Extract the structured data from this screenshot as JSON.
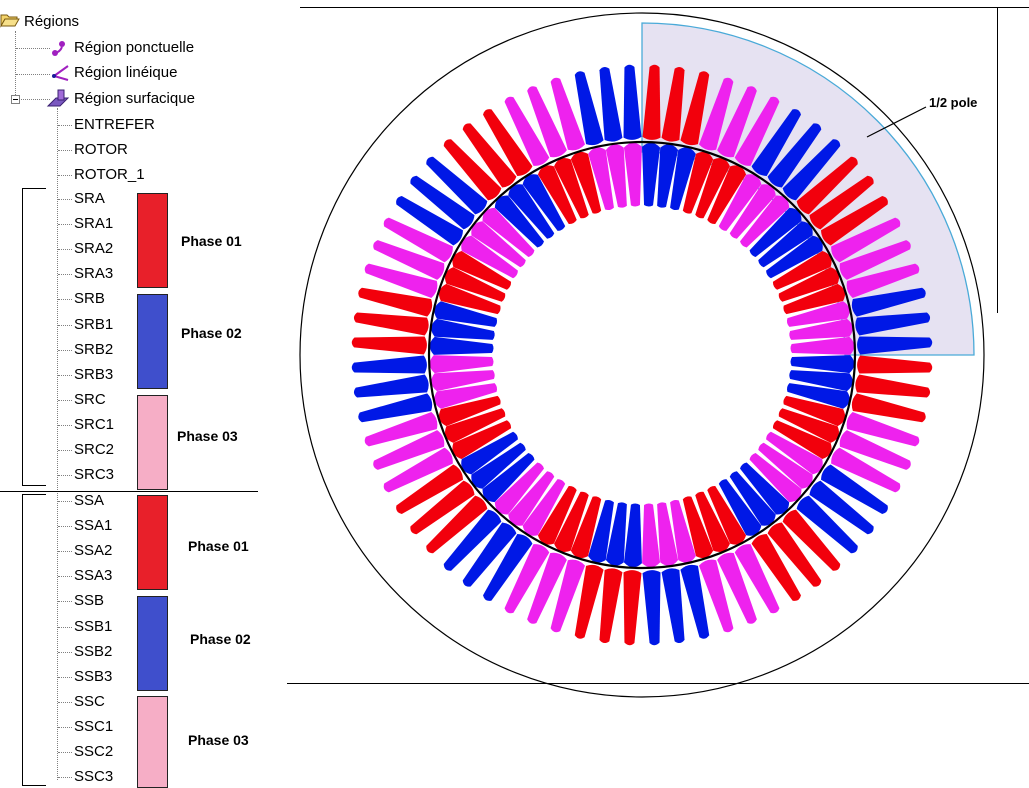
{
  "tree": {
    "root_label": "Régions",
    "items": [
      {
        "label": "Région ponctuelle",
        "icon": "point-region-icon"
      },
      {
        "label": "Région linéique",
        "icon": "line-region-icon"
      },
      {
        "label": "Région surfacique",
        "icon": "surface-region-icon"
      }
    ],
    "surface_children_top": [
      "ENTREFER",
      "ROTOR",
      "ROTOR_1"
    ],
    "rotor_regions": [
      "SRA",
      "SRA1",
      "SRA2",
      "SRA3",
      "SRB",
      "SRB1",
      "SRB2",
      "SRB3",
      "SRC",
      "SRC1",
      "SRC2",
      "SRC3"
    ],
    "stator_regions": [
      "SSA",
      "SSA1",
      "SSA2",
      "SSA3",
      "SSB",
      "SSB1",
      "SSB2",
      "SSB3",
      "SSC",
      "SSC1",
      "SSC2",
      "SSC3"
    ]
  },
  "phases": {
    "rotor": [
      {
        "label": "Phase 01",
        "color": "#e8202a"
      },
      {
        "label": "Phase 02",
        "color": "#3f4fcc"
      },
      {
        "label": "Phase 03",
        "color": "#f6aec6"
      }
    ],
    "stator": [
      {
        "label": "Phase 01",
        "color": "#e8202a"
      },
      {
        "label": "Phase 02",
        "color": "#3f4fcc"
      },
      {
        "label": "Phase 03",
        "color": "#f6aec6"
      }
    ]
  },
  "diagram": {
    "annotation": "1/2 pole",
    "colors": {
      "red": "#f2000c",
      "blue": "#0018e6",
      "magenta": "#ee22ee",
      "highlight_fill": "#e6e2f2",
      "highlight_stroke": "#4aaad8"
    }
  }
}
